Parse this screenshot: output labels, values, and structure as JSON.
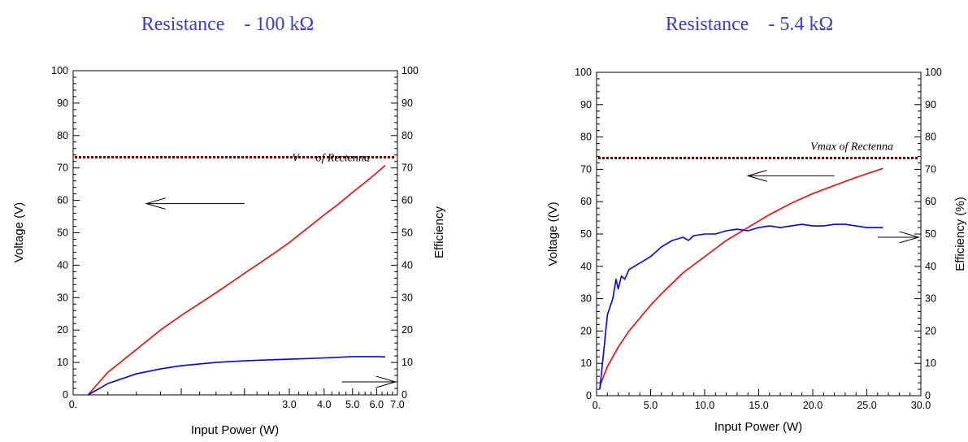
{
  "chart_data": [
    {
      "type": "line",
      "title": "Resistance    - 100 kΩ",
      "xlabel": "Input Power (W)",
      "ylabel": "Voltage (V)",
      "y2label": "Efficiency",
      "xlim": [
        0,
        7
      ],
      "ylim": [
        0,
        100
      ],
      "y2lim": [
        0,
        100
      ],
      "x_ticks": [
        0,
        3,
        4,
        5,
        6,
        7
      ],
      "x_tick_labels": [
        "0.",
        "3.0",
        "4.0",
        "5.0",
        "6.0",
        "7.0"
      ],
      "y_ticks": [
        0,
        10,
        20,
        30,
        40,
        50,
        60,
        70,
        80,
        90,
        100
      ],
      "y_tick_labels": [
        "0",
        "10",
        "20",
        "30",
        "40",
        "50",
        "60",
        "70",
        "80",
        "90",
        "100"
      ],
      "y2_tick_labels": [
        "0",
        "10",
        "20",
        "30",
        "40",
        "50",
        "60",
        "70",
        "80",
        "90",
        "100"
      ],
      "annotation": {
        "text": "V      of Rectenna",
        "y": 73
      },
      "hline_y": 73.3,
      "arrows": [
        {
          "direction": "left",
          "y": 59,
          "x_from": 2.0,
          "x_to": 0.6
        },
        {
          "direction": "right",
          "y": 4,
          "x_from": 4.6,
          "x_to": 6.9
        }
      ],
      "series": [
        {
          "color": "#ff0000",
          "axis": "left",
          "x": [
            0.1,
            0.25,
            0.5,
            0.75,
            1.0,
            1.5,
            2.0,
            2.5,
            3.0,
            3.5,
            4.0,
            4.5,
            5.0,
            5.5,
            6.0,
            6.4
          ],
          "y": [
            0,
            7,
            14,
            20,
            24.5,
            31.5,
            37.5,
            42.5,
            47,
            51.5,
            55.5,
            59,
            62.5,
            65.5,
            68.5,
            70.8
          ]
        },
        {
          "color": "#0000ff",
          "axis": "right",
          "x": [
            0.1,
            0.25,
            0.5,
            0.75,
            1.0,
            1.5,
            2.0,
            2.5,
            3.0,
            3.5,
            4.0,
            4.5,
            5.0,
            5.5,
            6.0,
            6.4
          ],
          "y": [
            0,
            3.5,
            6.5,
            8,
            9,
            10,
            10.5,
            10.8,
            11,
            11.2,
            11.4,
            11.6,
            11.8,
            11.8,
            11.8,
            11.7
          ]
        }
      ]
    },
    {
      "type": "line",
      "title": "Resistance    - 5.4 kΩ",
      "xlabel": "Input Power (W)",
      "ylabel": "Voltage ((V)",
      "y2label": "Efficiency (%)",
      "xlim": [
        0,
        30
      ],
      "ylim": [
        0,
        100
      ],
      "y2lim": [
        0,
        100
      ],
      "x_ticks": [
        0,
        5,
        10,
        15,
        20,
        25,
        30
      ],
      "x_tick_labels": [
        "0.",
        "5.0",
        "10.0",
        "15.0",
        "20.0",
        "25.0",
        "30.0"
      ],
      "y_ticks": [
        0,
        10,
        20,
        30,
        40,
        50,
        60,
        70,
        80,
        90,
        100
      ],
      "y_tick_labels": [
        "0",
        "10",
        "20",
        "30",
        "40",
        "50",
        "60",
        "70",
        "80",
        "90",
        "100"
      ],
      "y2_tick_labels": [
        "0",
        "10",
        "20",
        "30",
        "40",
        "50",
        "60",
        "70",
        "80",
        "90",
        "100"
      ],
      "annotation": {
        "text": "Vmax of Rectenna",
        "y": 77
      },
      "hline_y": 73.5,
      "arrows": [
        {
          "direction": "left",
          "y": 68,
          "x_from": 22,
          "x_to": 14
        },
        {
          "direction": "right",
          "y": 49,
          "x_from": 26,
          "x_to": 29.8
        }
      ],
      "series": [
        {
          "color": "#ff0000",
          "axis": "left",
          "x": [
            0.3,
            1.0,
            2.0,
            3.0,
            4.0,
            5.0,
            6.0,
            8.0,
            10.0,
            12.0,
            14.0,
            16.0,
            18.0,
            20.0,
            22.0,
            24.0,
            26.5
          ],
          "y": [
            3,
            9,
            15,
            20,
            24,
            28,
            31.5,
            38,
            43,
            48,
            52,
            56,
            59.5,
            62.5,
            65,
            67.5,
            70.3
          ]
        },
        {
          "color": "#0000ff",
          "axis": "right",
          "x": [
            0.3,
            0.7,
            1.0,
            1.5,
            1.8,
            2.0,
            2.3,
            2.6,
            3.0,
            3.5,
            4.0,
            5.0,
            6.0,
            7.0,
            8.0,
            8.5,
            9.0,
            10.0,
            11.0,
            12.0,
            13.0,
            14.0,
            15.0,
            16.0,
            17.0,
            18.0,
            19.0,
            20.0,
            21.0,
            22.0,
            23.0,
            24.0,
            25.0,
            26.5
          ],
          "y": [
            2,
            15,
            25,
            30,
            36,
            33,
            37,
            36,
            39,
            40,
            41,
            43,
            46,
            48,
            49,
            48,
            49.5,
            50,
            50,
            51,
            51.5,
            51,
            52,
            52.5,
            52,
            52.5,
            53,
            52.5,
            52.5,
            53,
            53,
            52.5,
            52,
            52
          ]
        }
      ]
    }
  ]
}
